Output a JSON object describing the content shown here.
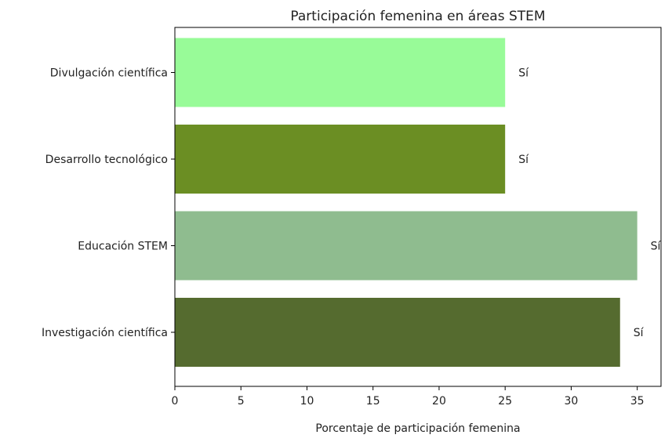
{
  "chart_data": {
    "type": "bar",
    "orientation": "horizontal",
    "title": "Participación femenina en áreas STEM",
    "xlabel": "Porcentaje de participación femenina",
    "ylabel": "",
    "xlim": [
      0,
      36.8
    ],
    "xticks": [
      0,
      5,
      10,
      15,
      20,
      25,
      30,
      35
    ],
    "grid": false,
    "categories": [
      "Investigación científica",
      "Educación STEM",
      "Desarrollo tecnológico",
      "Divulgación científica"
    ],
    "values": [
      33.7,
      35.0,
      25.0,
      25.0
    ],
    "data_labels": [
      "Sí",
      "Sí",
      "Sí",
      "Sí"
    ],
    "colors": [
      "#556b2f",
      "#8fbc8f",
      "#6b8e23",
      "#98fb98"
    ]
  }
}
